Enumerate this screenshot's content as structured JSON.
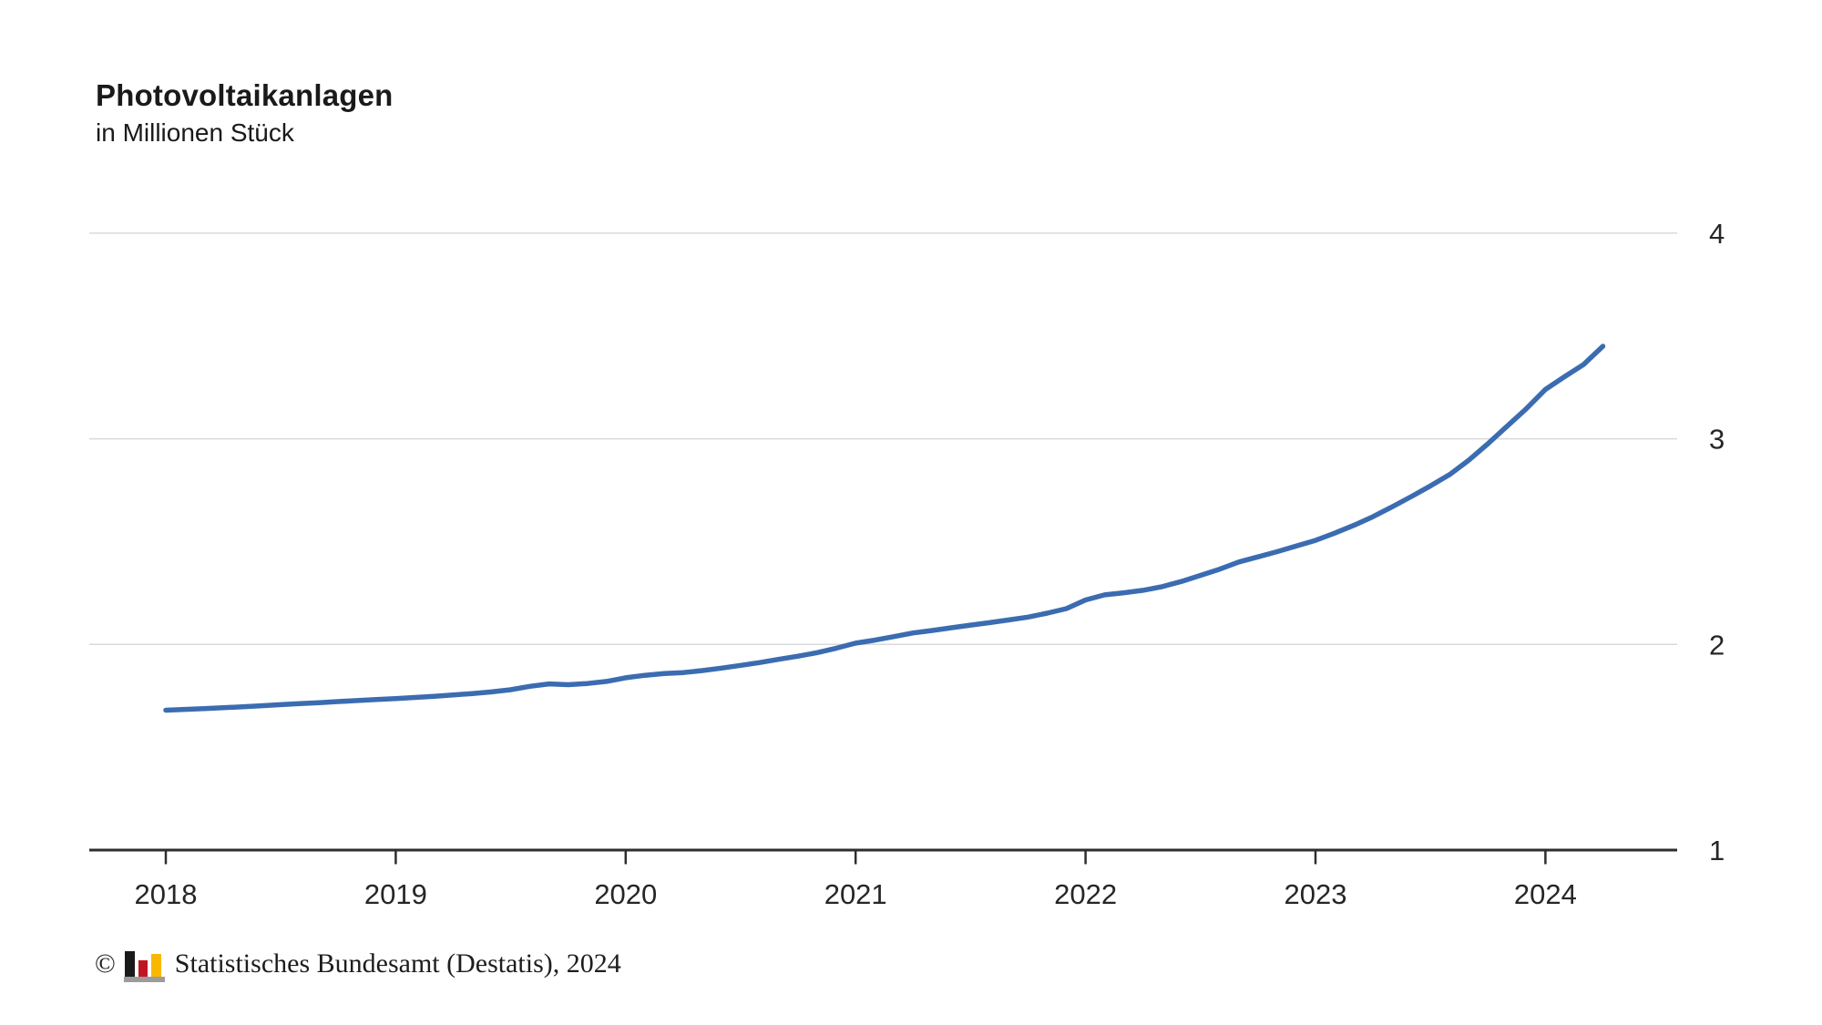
{
  "header": {
    "title": "Photovoltaikanlagen",
    "subtitle": "in Millionen Stück"
  },
  "footer": {
    "copyright": "©",
    "source": "Statistisches Bundesamt (Destatis), 2024",
    "logo_icon": "bar-chart-icon",
    "logo_colors": {
      "bar1": "#1a1a1a",
      "bar2": "#c01724",
      "bar3": "#f8b800",
      "base": "#9c9c9c"
    }
  },
  "colors": {
    "line": "#3b6cb1",
    "grid": "#d9d9d9",
    "axis": "#2e2e2e",
    "text": "#262626"
  },
  "chart_data": {
    "type": "line",
    "title": "Photovoltaikanlagen",
    "ylabel": "in Millionen Stück",
    "xlabel": "",
    "legend": "none",
    "grid": "horizontal",
    "ylim": [
      1,
      4
    ],
    "xlim_years": [
      2017.67,
      2024.57
    ],
    "x_tick_years": [
      2018,
      2019,
      2020,
      2021,
      2022,
      2023,
      2024
    ],
    "x_tick_labels": [
      "2018",
      "2019",
      "2020",
      "2021",
      "2022",
      "2023",
      "2024"
    ],
    "y_ticks": [
      4,
      3,
      2,
      1
    ],
    "y_tick_labels": [
      "4",
      "3",
      "2",
      "1"
    ],
    "y_gridline_values": [
      4,
      3,
      2
    ],
    "series": [
      {
        "name": "Photovoltaikanlagen (Millionen Stück)",
        "color": "#3b6cb1",
        "start_year": 2018,
        "points_per_year": 12,
        "values": [
          1.68,
          1.684,
          1.688,
          1.692,
          1.697,
          1.702,
          1.707,
          1.712,
          1.717,
          1.722,
          1.727,
          1.732,
          1.737,
          1.742,
          1.748,
          1.754,
          1.761,
          1.769,
          1.78,
          1.796,
          1.808,
          1.804,
          1.81,
          1.82,
          1.838,
          1.85,
          1.858,
          1.863,
          1.873,
          1.885,
          1.898,
          1.912,
          1.928,
          1.943,
          1.96,
          1.982,
          2.006,
          2.021,
          2.038,
          2.056,
          2.068,
          2.081,
          2.094,
          2.106,
          2.119,
          2.133,
          2.152,
          2.174,
          2.216,
          2.241,
          2.251,
          2.263,
          2.281,
          2.306,
          2.336,
          2.366,
          2.401,
          2.426,
          2.451,
          2.479,
          2.506,
          2.541,
          2.579,
          2.621,
          2.669,
          2.719,
          2.771,
          2.826,
          2.896,
          2.976,
          3.061,
          3.146,
          3.24,
          3.302,
          3.362,
          3.45
        ]
      }
    ]
  }
}
